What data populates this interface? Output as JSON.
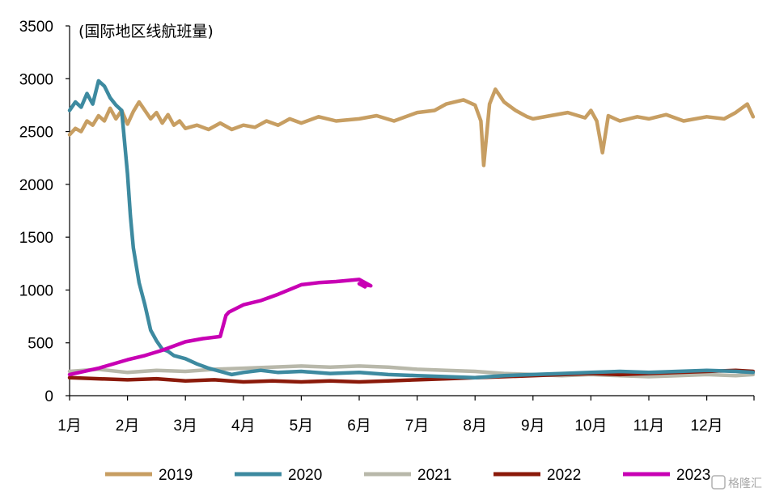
{
  "chart_data": {
    "type": "line",
    "title": "",
    "unit_label": "(国际地区线航班量)",
    "xlabel": "",
    "ylabel": "",
    "ylim": [
      0,
      3500
    ],
    "yticks": [
      0,
      500,
      1000,
      1500,
      2000,
      2500,
      3000,
      3500
    ],
    "xlim": [
      0,
      12
    ],
    "x_unit": "month (1.0 = start of 1月)",
    "categories": [
      "1月",
      "2月",
      "3月",
      "4月",
      "5月",
      "6月",
      "7月",
      "8月",
      "9月",
      "10月",
      "11月",
      "12月"
    ],
    "grid": false,
    "legend_position": "bottom",
    "series": [
      {
        "name": "2019",
        "color": "#c79e62",
        "x": [
          0,
          0.1,
          0.2,
          0.3,
          0.4,
          0.5,
          0.6,
          0.7,
          0.8,
          0.9,
          1.0,
          1.1,
          1.2,
          1.3,
          1.4,
          1.5,
          1.6,
          1.7,
          1.8,
          1.9,
          2.0,
          2.2,
          2.4,
          2.6,
          2.8,
          3.0,
          3.2,
          3.4,
          3.6,
          3.8,
          4.0,
          4.3,
          4.6,
          5.0,
          5.3,
          5.6,
          6.0,
          6.3,
          6.5,
          6.8,
          7.0,
          7.1,
          7.15,
          7.25,
          7.35,
          7.5,
          7.7,
          7.9,
          8.0,
          8.3,
          8.6,
          8.9,
          9.0,
          9.1,
          9.2,
          9.3,
          9.5,
          9.8,
          10.0,
          10.3,
          10.6,
          11.0,
          11.3,
          11.5,
          11.7,
          11.8
        ],
        "values": [
          2470,
          2530,
          2500,
          2600,
          2560,
          2650,
          2600,
          2720,
          2620,
          2700,
          2570,
          2690,
          2780,
          2700,
          2620,
          2680,
          2580,
          2660,
          2560,
          2600,
          2530,
          2560,
          2520,
          2580,
          2520,
          2560,
          2540,
          2600,
          2560,
          2620,
          2580,
          2640,
          2600,
          2620,
          2650,
          2600,
          2680,
          2700,
          2760,
          2800,
          2750,
          2600,
          2180,
          2760,
          2900,
          2780,
          2700,
          2640,
          2620,
          2650,
          2680,
          2630,
          2700,
          2600,
          2300,
          2650,
          2600,
          2640,
          2620,
          2660,
          2600,
          2640,
          2620,
          2680,
          2760,
          2640
        ]
      },
      {
        "name": "2020",
        "color": "#3d8aa0",
        "x": [
          0,
          0.1,
          0.2,
          0.3,
          0.4,
          0.5,
          0.6,
          0.7,
          0.8,
          0.9,
          1.0,
          1.05,
          1.1,
          1.2,
          1.3,
          1.4,
          1.5,
          1.6,
          1.7,
          1.8,
          2.0,
          2.2,
          2.4,
          2.6,
          2.8,
          3.0,
          3.3,
          3.6,
          4.0,
          4.5,
          5.0,
          5.5,
          6.0,
          6.5,
          7.0,
          7.5,
          8.0,
          8.5,
          9.0,
          9.5,
          10.0,
          10.5,
          11.0,
          11.5,
          11.8
        ],
        "values": [
          2700,
          2780,
          2730,
          2860,
          2760,
          2980,
          2930,
          2820,
          2750,
          2700,
          2100,
          1700,
          1400,
          1070,
          860,
          620,
          520,
          440,
          420,
          380,
          350,
          300,
          260,
          230,
          200,
          220,
          240,
          220,
          230,
          210,
          220,
          200,
          190,
          180,
          170,
          190,
          200,
          210,
          220,
          230,
          220,
          230,
          240,
          230,
          220
        ]
      },
      {
        "name": "2021",
        "color": "#b8b8aa",
        "x": [
          0,
          0.5,
          1.0,
          1.5,
          2.0,
          2.5,
          3.0,
          3.5,
          4.0,
          4.5,
          5.0,
          5.5,
          6.0,
          6.5,
          7.0,
          7.5,
          8.0,
          8.5,
          9.0,
          9.5,
          10.0,
          10.5,
          11.0,
          11.5,
          11.8
        ],
        "values": [
          230,
          250,
          220,
          240,
          230,
          250,
          260,
          270,
          280,
          270,
          280,
          270,
          250,
          240,
          230,
          210,
          200,
          190,
          200,
          190,
          180,
          190,
          200,
          190,
          200
        ]
      },
      {
        "name": "2022",
        "color": "#8b1a0a",
        "x": [
          0,
          0.5,
          1.0,
          1.5,
          2.0,
          2.5,
          3.0,
          3.5,
          4.0,
          4.5,
          5.0,
          5.5,
          6.0,
          6.5,
          7.0,
          7.5,
          8.0,
          8.5,
          9.0,
          9.5,
          10.0,
          10.5,
          11.0,
          11.5,
          11.8
        ],
        "values": [
          170,
          160,
          150,
          160,
          140,
          150,
          130,
          140,
          130,
          140,
          130,
          140,
          150,
          160,
          170,
          180,
          190,
          200,
          210,
          200,
          210,
          220,
          230,
          240,
          230
        ]
      },
      {
        "name": "2023",
        "color": "#c800b4",
        "x": [
          0,
          0.5,
          1.0,
          1.3,
          1.6,
          2.0,
          2.3,
          2.6,
          2.7,
          2.75,
          3.0,
          3.3,
          3.6,
          4.0,
          4.3,
          4.6,
          5.0,
          5.2,
          5.0,
          5.1
        ],
        "values": [
          200,
          260,
          340,
          380,
          430,
          510,
          540,
          560,
          760,
          790,
          860,
          900,
          960,
          1050,
          1070,
          1080,
          1100,
          1040,
          1060,
          1030
        ]
      }
    ],
    "watermark": "格隆汇"
  }
}
